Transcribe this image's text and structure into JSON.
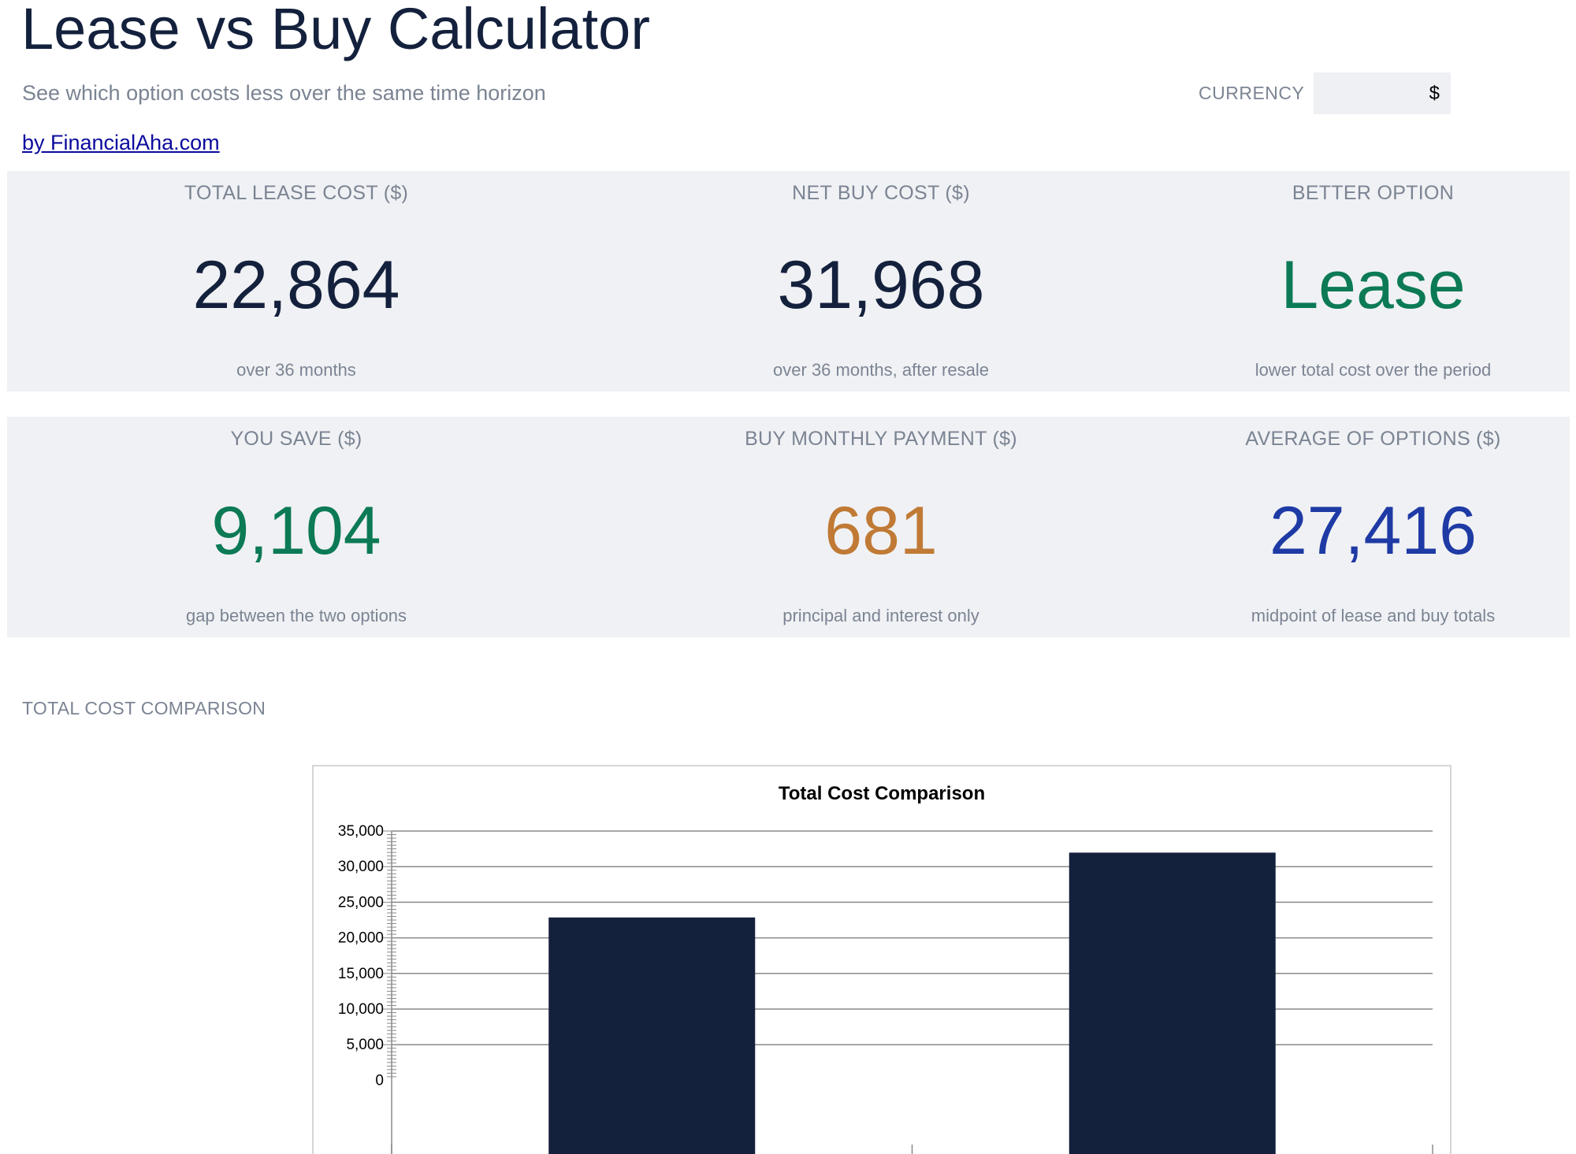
{
  "header": {
    "title": "Lease vs Buy Calculator",
    "subtitle": "See which option costs less over the same time horizon",
    "byline": "by FinancialAha.com"
  },
  "currency": {
    "label": "CURRENCY",
    "value": "$"
  },
  "kpis": [
    {
      "label": "TOTAL LEASE COST ($)",
      "value": "22,864",
      "note": "over 36 months",
      "color": "#14213d"
    },
    {
      "label": "NET BUY COST ($)",
      "value": "31,968",
      "note": "over 36 months, after resale",
      "color": "#14213d"
    },
    {
      "label": "BETTER OPTION",
      "value": "Lease",
      "note": "lower total cost over the period",
      "color": "#0b7a55"
    },
    {
      "label": "YOU SAVE ($)",
      "value": "9,104",
      "note": "gap between the two options",
      "color": "#0b7a55"
    },
    {
      "label": "BUY MONTHLY PAYMENT ($)",
      "value": "681",
      "note": "principal and interest only",
      "color": "#c07a35"
    },
    {
      "label": "AVERAGE OF OPTIONS ($)",
      "value": "27,416",
      "note": "midpoint of lease and buy totals",
      "color": "#1e3aa5"
    }
  ],
  "section": {
    "label": "TOTAL COST COMPARISON"
  },
  "chart_data": {
    "type": "bar",
    "title": "Total Cost Comparison",
    "categories": [
      "",
      ""
    ],
    "values": [
      22864,
      31968
    ],
    "ylim": [
      0,
      35000
    ],
    "yticks": [
      0,
      5000,
      10000,
      15000,
      20000,
      25000,
      30000,
      35000
    ],
    "ytick_labels": [
      "0",
      "5,000",
      "10,000",
      "15,000",
      "20,000",
      "25,000",
      "30,000",
      "35,000"
    ],
    "bar_color": "#14213d",
    "grid": true,
    "legend": "none"
  }
}
